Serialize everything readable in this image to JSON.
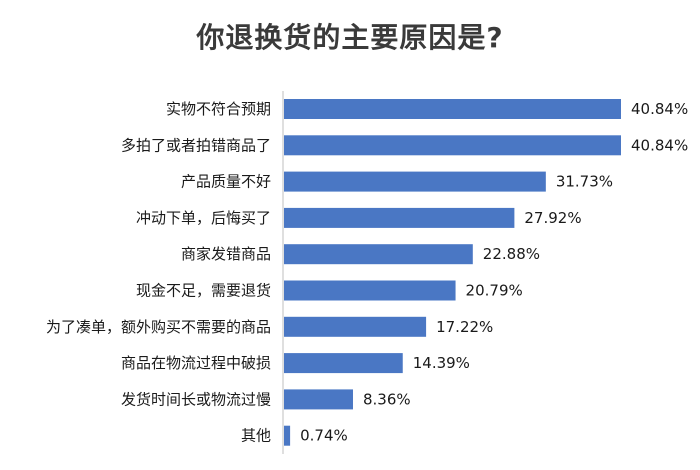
{
  "chart_data": {
    "type": "bar",
    "orientation": "horizontal",
    "title": "你退换货的主要原因是?",
    "categories": [
      "实物不符合预期",
      "多拍了或者拍错商品了",
      "产品质量不好",
      "冲动下单，后悔买了",
      "商家发错商品",
      "现金不足，需要退货",
      "为了凑单，额外购买不需要的商品",
      "商品在物流过程中破损",
      "发货时间长或物流过慢",
      "其他"
    ],
    "values": [
      40.84,
      40.84,
      31.73,
      27.92,
      22.88,
      20.79,
      17.22,
      14.39,
      8.36,
      0.74
    ],
    "value_labels": [
      "40.84%",
      "40.84%",
      "31.73%",
      "27.92%",
      "22.88%",
      "20.79%",
      "17.22%",
      "14.39%",
      "8.36%",
      "0.74%"
    ],
    "xlim": [
      0,
      40.84
    ],
    "bar_color": "#4a77c4",
    "grid": false,
    "legend": "none"
  }
}
